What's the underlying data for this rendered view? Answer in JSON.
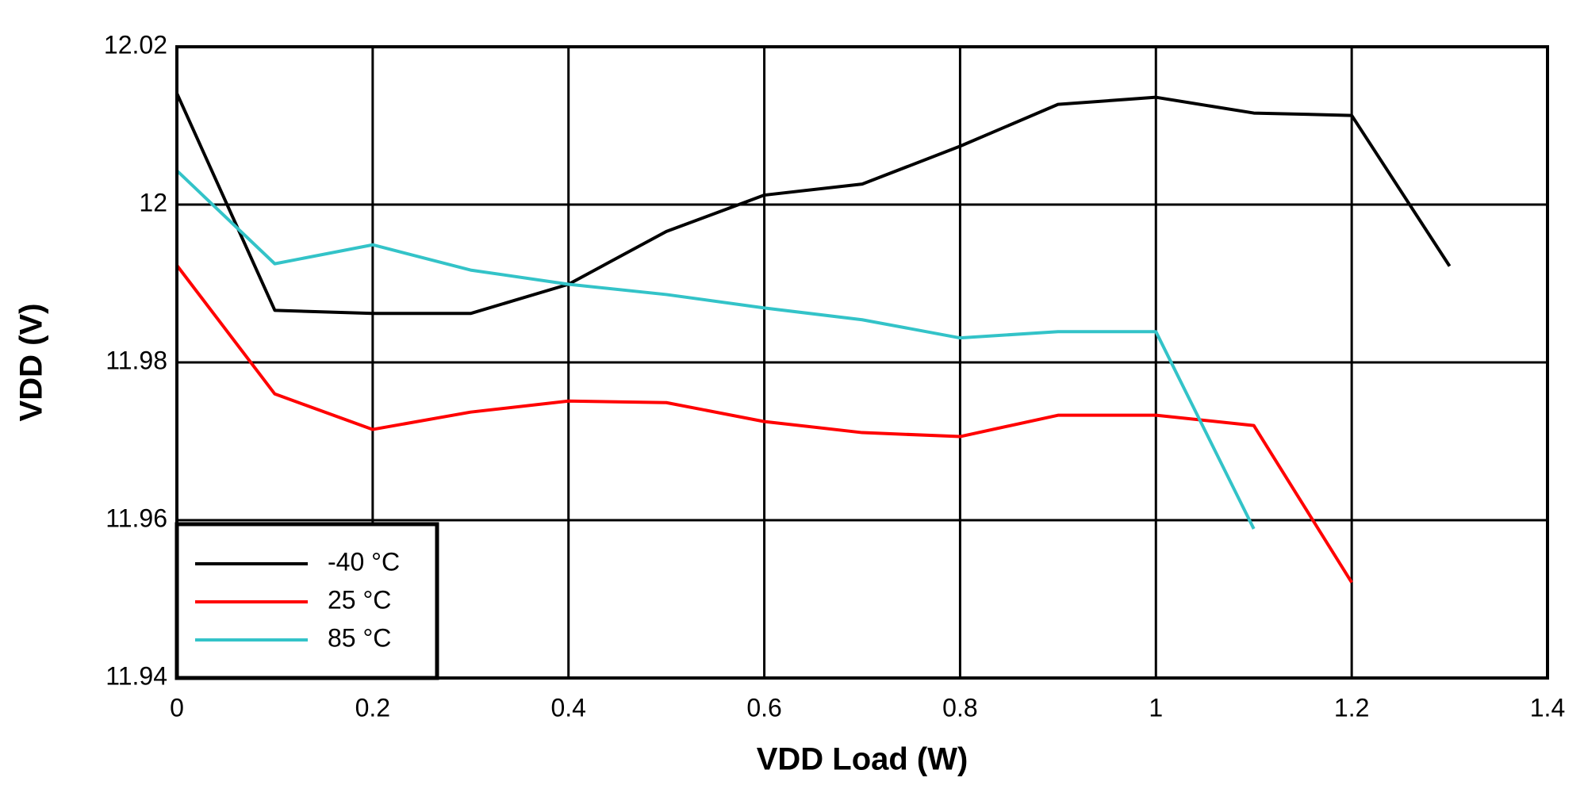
{
  "chart_data": {
    "type": "line",
    "x_label": "VDD Load (W)",
    "y_label": "VDD (V)",
    "x": [
      0,
      0.1,
      0.2,
      0.3,
      0.4,
      0.5,
      0.6,
      0.7,
      0.8,
      0.9,
      1,
      1.1,
      1.2,
      1.3
    ],
    "series": [
      {
        "name": "-40 °C",
        "color": "#000000",
        "values": [
          12.0141,
          11.9866,
          11.9862,
          11.9862,
          11.9899,
          11.9966,
          12.0012,
          12.0026,
          12.0074,
          12.0127,
          12.0136,
          12.0116,
          12.0113,
          11.9922
        ]
      },
      {
        "name": "25 °C",
        "color": "#ff0000",
        "values": [
          11.9923,
          11.976,
          11.9715,
          11.9737,
          11.9751,
          11.9749,
          11.9725,
          11.9711,
          11.9706,
          11.9733,
          11.9733,
          11.972,
          11.9521,
          null
        ]
      },
      {
        "name": "85 °C",
        "color": "#33c3c8",
        "values": [
          12.0043,
          11.9925,
          11.9949,
          11.9917,
          11.9899,
          11.9886,
          11.9869,
          11.9854,
          11.9831,
          11.9839,
          11.9839,
          11.9589,
          null,
          null
        ]
      }
    ],
    "xlim": [
      0,
      1.4
    ],
    "xticks": [
      0,
      0.2,
      0.4,
      0.6,
      0.8,
      1,
      1.2,
      1.4
    ],
    "ylim": [
      11.94,
      12.02
    ],
    "yticks": [
      11.94,
      11.96,
      11.98,
      12,
      12.02
    ],
    "grid": true,
    "legend": "lower left"
  }
}
